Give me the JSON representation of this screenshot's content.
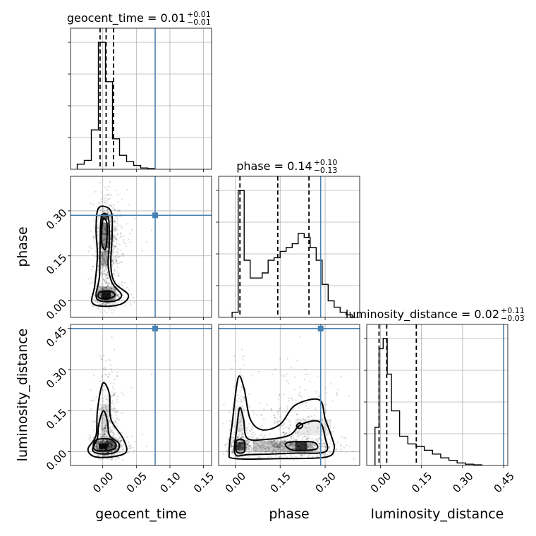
{
  "chart_data": {
    "type": "scatter",
    "parameters": [
      "geocent_time",
      "phase",
      "luminosity_distance"
    ],
    "truths": {
      "geocent_time": 0.078,
      "phase": 0.285,
      "luminosity_distance": 0.45
    },
    "titles": {
      "geocent_time": {
        "prefix": "geocent_time = 0.01",
        "sup": "+0.01",
        "sub": "−0.01"
      },
      "phase": {
        "prefix": "phase = 0.14",
        "sup": "+0.10",
        "sub": "−0.13"
      },
      "luminosity_distance": {
        "prefix": "luminosity_distance = 0.02",
        "sup": "+0.11",
        "sub": "−0.03"
      }
    },
    "axis_labels": {
      "geocent_time": "geocent_time",
      "phase": "phase",
      "luminosity_distance": "luminosity_distance"
    },
    "ranges": {
      "geocent_time": [
        -0.048,
        0.162
      ],
      "phase": [
        -0.055,
        0.415
      ],
      "luminosity_distance": [
        -0.05,
        0.465
      ]
    },
    "ticks": {
      "geocent_time": [
        {
          "v": 0.0,
          "label": "0.00"
        },
        {
          "v": 0.05,
          "label": "0.05"
        },
        {
          "v": 0.1,
          "label": "0.10"
        },
        {
          "v": 0.15,
          "label": "0.15"
        }
      ],
      "phase": [
        {
          "v": 0.0,
          "label": "0.00"
        },
        {
          "v": 0.15,
          "label": "0.15"
        },
        {
          "v": 0.3,
          "label": "0.30"
        }
      ],
      "luminosity_distance": [
        {
          "v": 0.0,
          "label": "0.00"
        },
        {
          "v": 0.15,
          "label": "0.15"
        },
        {
          "v": 0.3,
          "label": "0.30"
        },
        {
          "v": 0.45,
          "label": "0.45"
        }
      ]
    },
    "quantiles": {
      "geocent_time": [
        -0.004,
        0.005,
        0.016
      ],
      "phase": [
        0.016,
        0.142,
        0.246
      ],
      "luminosity_distance": [
        -0.005,
        0.023,
        0.131
      ]
    },
    "histograms": {
      "geocent_time": {
        "edges": [
          -0.038,
          -0.0275,
          -0.017,
          -0.0065,
          0.004,
          0.0145,
          0.025,
          0.0355,
          0.046,
          0.0565,
          0.067,
          0.0775
        ],
        "counts": [
          0.04,
          0.07,
          0.31,
          1.0,
          0.69,
          0.24,
          0.11,
          0.06,
          0.03,
          0.01,
          0.005
        ]
      },
      "phase": {
        "edges": [
          -0.01,
          0.01,
          0.03,
          0.05,
          0.07,
          0.09,
          0.11,
          0.13,
          0.15,
          0.17,
          0.19,
          0.21,
          0.23,
          0.25,
          0.27,
          0.29,
          0.31,
          0.33,
          0.35,
          0.37,
          0.39
        ],
        "counts": [
          0.04,
          1.0,
          0.45,
          0.31,
          0.31,
          0.35,
          0.45,
          0.47,
          0.52,
          0.55,
          0.58,
          0.66,
          0.63,
          0.55,
          0.45,
          0.26,
          0.13,
          0.08,
          0.04,
          0.02
        ]
      },
      "luminosity_distance": {
        "edges": [
          -0.02,
          -0.005,
          0.01,
          0.025,
          0.04,
          0.07,
          0.1,
          0.13,
          0.16,
          0.19,
          0.22,
          0.25,
          0.28,
          0.31,
          0.34,
          0.37
        ],
        "counts": [
          0.3,
          0.92,
          1.0,
          0.72,
          0.43,
          0.23,
          0.17,
          0.15,
          0.12,
          0.09,
          0.06,
          0.04,
          0.02,
          0.01,
          0.005
        ]
      }
    },
    "grid": true
  }
}
